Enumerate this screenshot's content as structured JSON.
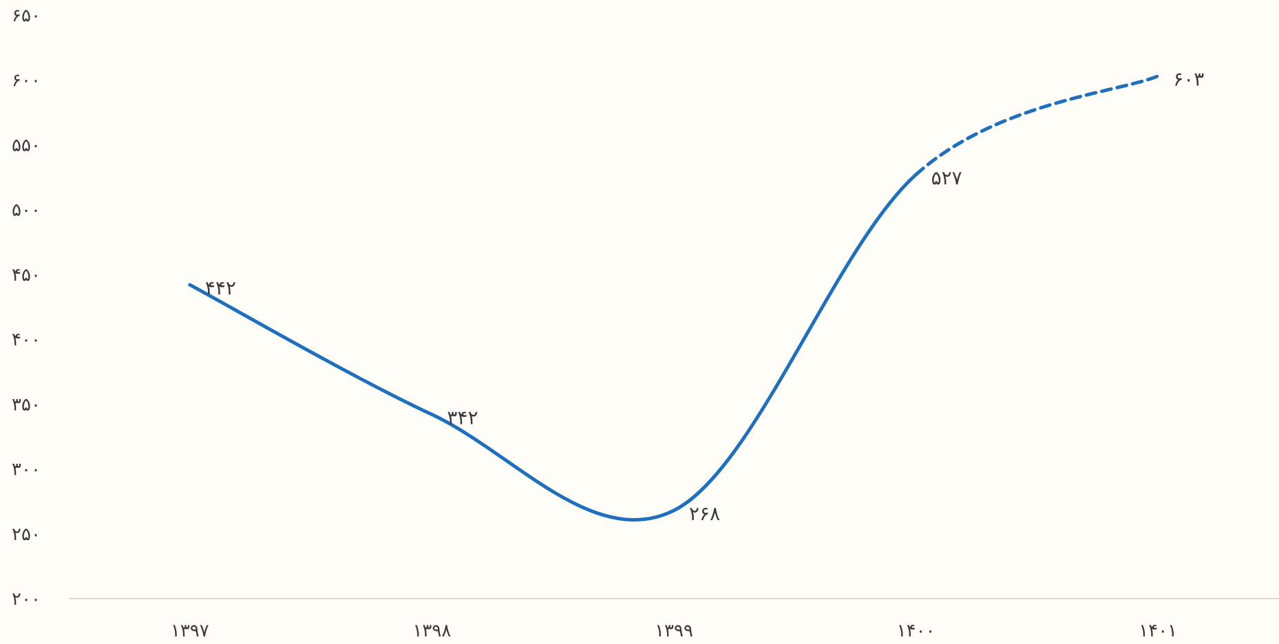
{
  "chart_data": {
    "type": "line",
    "categories": [
      "۱۳۹۷",
      "۱۳۹۸",
      "۱۳۹۹",
      "۱۴۰۰",
      "۱۴۰۱"
    ],
    "series": [
      {
        "values": [
          442,
          342,
          268,
          527,
          603
        ],
        "value_labels": [
          "۴۴۲",
          "۳۴۲",
          "۲۶۸",
          "۵۲۷",
          "۶۰۳"
        ],
        "color": "#1f6fbf",
        "dashed_from_index": 3
      }
    ],
    "ylim": [
      200,
      650
    ],
    "yticks": [
      200,
      250,
      300,
      350,
      400,
      450,
      500,
      550,
      600,
      650
    ],
    "ytick_labels": [
      "۲۰۰",
      "۲۵۰",
      "۳۰۰",
      "۳۵۰",
      "۴۰۰",
      "۴۵۰",
      "۵۰۰",
      "۵۵۰",
      "۶۰۰",
      "۶۵۰"
    ],
    "grid": false,
    "legend": "none",
    "axis_color": "#d9d9d9"
  }
}
